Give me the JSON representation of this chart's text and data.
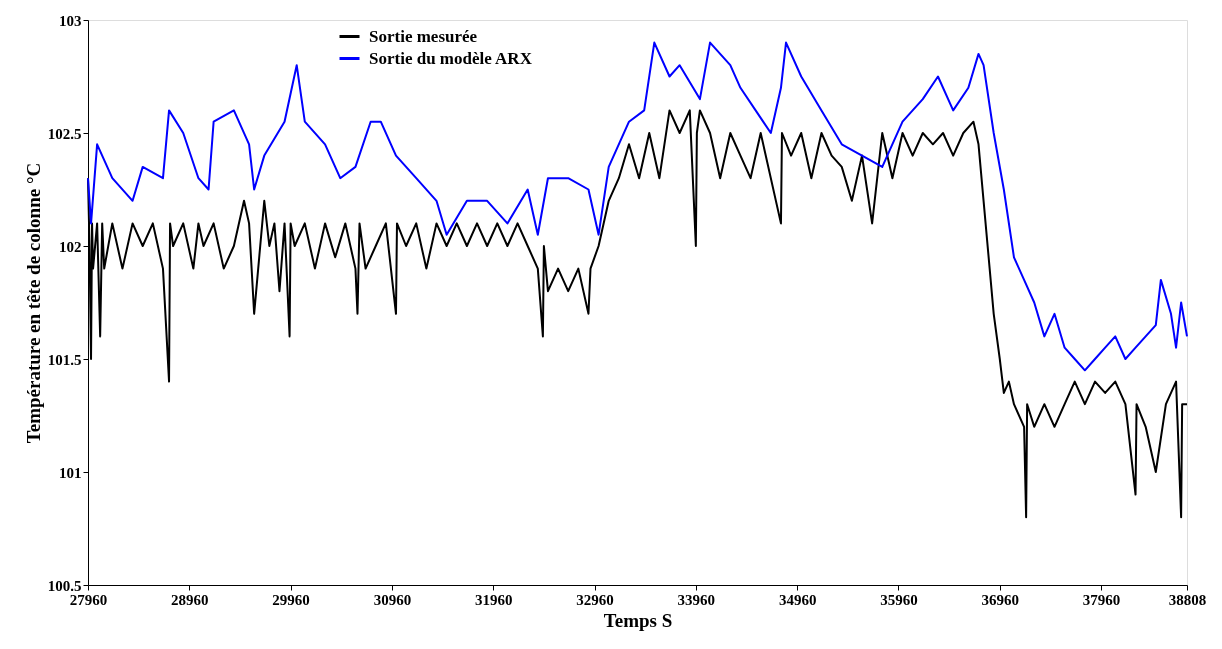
{
  "chart_data": {
    "type": "line",
    "xlabel": "Temps S",
    "ylabel": "Température en tête de colonne °C",
    "xlim": [
      27960,
      38808
    ],
    "xticks": [
      27960,
      28960,
      29960,
      30960,
      31960,
      32960,
      33960,
      34960,
      35960,
      36960,
      37960,
      38808
    ],
    "ylim": [
      100.5,
      103
    ],
    "yticks": [
      100.5,
      101,
      101.5,
      102,
      102.5,
      103
    ],
    "grid": false,
    "legend": "top left",
    "line_style": "solid",
    "marker": "none",
    "series": [
      {
        "name": "Sortie mesurée",
        "color": "#000000",
        "x": [
          27960,
          27975,
          27990,
          28000,
          28010,
          28050,
          28080,
          28100,
          28120,
          28200,
          28300,
          28400,
          28500,
          28600,
          28700,
          28760,
          28770,
          28800,
          28900,
          29000,
          29050,
          29100,
          29200,
          29300,
          29400,
          29500,
          29550,
          29600,
          29700,
          29750,
          29800,
          29850,
          29900,
          29950,
          29960,
          30000,
          30100,
          30200,
          30300,
          30400,
          30500,
          30600,
          30620,
          30640,
          30700,
          30800,
          30900,
          31000,
          31010,
          31100,
          31200,
          31300,
          31400,
          31500,
          31600,
          31700,
          31800,
          31900,
          32000,
          32100,
          32200,
          32300,
          32400,
          32450,
          32460,
          32500,
          32600,
          32700,
          32800,
          32900,
          32920,
          33000,
          33100,
          33200,
          33300,
          33400,
          33500,
          33600,
          33700,
          33800,
          33900,
          33960,
          33970,
          34000,
          34100,
          34200,
          34300,
          34400,
          34500,
          34600,
          34800,
          34810,
          34900,
          35000,
          35100,
          35200,
          35300,
          35400,
          35500,
          35600,
          35700,
          35800,
          35900,
          36000,
          36100,
          36200,
          36300,
          36400,
          36500,
          36600,
          36700,
          36750,
          36800,
          36860,
          36900,
          36960,
          37000,
          37050,
          37100,
          37200,
          37220,
          37230,
          37300,
          37400,
          37500,
          37600,
          37700,
          37800,
          37900,
          38000,
          38100,
          38200,
          38300,
          38310,
          38400,
          38500,
          38600,
          38700,
          38750,
          38760,
          38808
        ],
        "values": [
          102.3,
          102.0,
          101.5,
          102.1,
          101.9,
          102.1,
          101.6,
          102.1,
          101.9,
          102.1,
          101.9,
          102.1,
          102.0,
          102.1,
          101.9,
          101.4,
          102.1,
          102.0,
          102.1,
          101.9,
          102.1,
          102.0,
          102.1,
          101.9,
          102.0,
          102.2,
          102.1,
          101.7,
          102.2,
          102.0,
          102.1,
          101.8,
          102.1,
          101.6,
          102.1,
          102.0,
          102.1,
          101.9,
          102.1,
          101.95,
          102.1,
          101.9,
          101.7,
          102.1,
          101.9,
          102.0,
          102.1,
          101.7,
          102.1,
          102.0,
          102.1,
          101.9,
          102.1,
          102.0,
          102.1,
          102.0,
          102.1,
          102.0,
          102.1,
          102.0,
          102.1,
          102.0,
          101.9,
          101.6,
          102.0,
          101.8,
          101.9,
          101.8,
          101.9,
          101.7,
          101.9,
          102.0,
          102.2,
          102.3,
          102.45,
          102.3,
          102.5,
          102.3,
          102.6,
          102.5,
          102.6,
          102.0,
          102.5,
          102.6,
          102.5,
          102.3,
          102.5,
          102.4,
          102.3,
          102.5,
          102.1,
          102.5,
          102.4,
          102.5,
          102.3,
          102.5,
          102.4,
          102.35,
          102.2,
          102.4,
          102.1,
          102.5,
          102.3,
          102.5,
          102.4,
          102.5,
          102.45,
          102.5,
          102.4,
          102.5,
          102.55,
          102.45,
          102.2,
          101.9,
          101.7,
          101.5,
          101.35,
          101.4,
          101.3,
          101.2,
          100.8,
          101.3,
          101.2,
          101.3,
          101.2,
          101.3,
          101.4,
          101.3,
          101.4,
          101.35,
          101.4,
          101.3,
          100.9,
          101.3,
          101.2,
          101.0,
          101.3,
          101.4,
          100.8,
          101.3,
          101.3
        ]
      },
      {
        "name": "Sortie du modèle ARX",
        "color": "#0000ff",
        "x": [
          27960,
          27990,
          28050,
          28200,
          28400,
          28500,
          28700,
          28760,
          28900,
          29050,
          29150,
          29200,
          29400,
          29550,
          29600,
          29700,
          29900,
          30020,
          30100,
          30300,
          30450,
          30600,
          30750,
          30850,
          31000,
          31200,
          31400,
          31500,
          31700,
          31900,
          32100,
          32300,
          32400,
          32500,
          32700,
          32900,
          33000,
          33100,
          33300,
          33450,
          33550,
          33700,
          33800,
          34000,
          34100,
          34300,
          34400,
          34550,
          34700,
          34800,
          34850,
          35000,
          35200,
          35400,
          35600,
          35800,
          36000,
          36200,
          36350,
          36500,
          36650,
          36750,
          36800,
          36900,
          37000,
          37100,
          37200,
          37300,
          37400,
          37500,
          37600,
          37700,
          37800,
          37900,
          38000,
          38100,
          38200,
          38300,
          38400,
          38500,
          38550,
          38650,
          38700,
          38750,
          38808
        ],
        "values": [
          102.3,
          102.1,
          102.45,
          102.3,
          102.2,
          102.35,
          102.3,
          102.6,
          102.5,
          102.3,
          102.25,
          102.55,
          102.6,
          102.45,
          102.25,
          102.4,
          102.55,
          102.8,
          102.55,
          102.45,
          102.3,
          102.35,
          102.55,
          102.55,
          102.4,
          102.3,
          102.2,
          102.05,
          102.2,
          102.2,
          102.1,
          102.25,
          102.05,
          102.3,
          102.3,
          102.25,
          102.05,
          102.35,
          102.55,
          102.6,
          102.9,
          102.75,
          102.8,
          102.65,
          102.9,
          102.8,
          102.7,
          102.6,
          102.5,
          102.7,
          102.9,
          102.75,
          102.6,
          102.45,
          102.4,
          102.35,
          102.55,
          102.65,
          102.75,
          102.6,
          102.7,
          102.85,
          102.8,
          102.5,
          102.25,
          101.95,
          101.85,
          101.75,
          101.6,
          101.7,
          101.55,
          101.5,
          101.45,
          101.5,
          101.55,
          101.6,
          101.5,
          101.55,
          101.6,
          101.65,
          101.85,
          101.7,
          101.55,
          101.75,
          101.6
        ]
      }
    ]
  }
}
